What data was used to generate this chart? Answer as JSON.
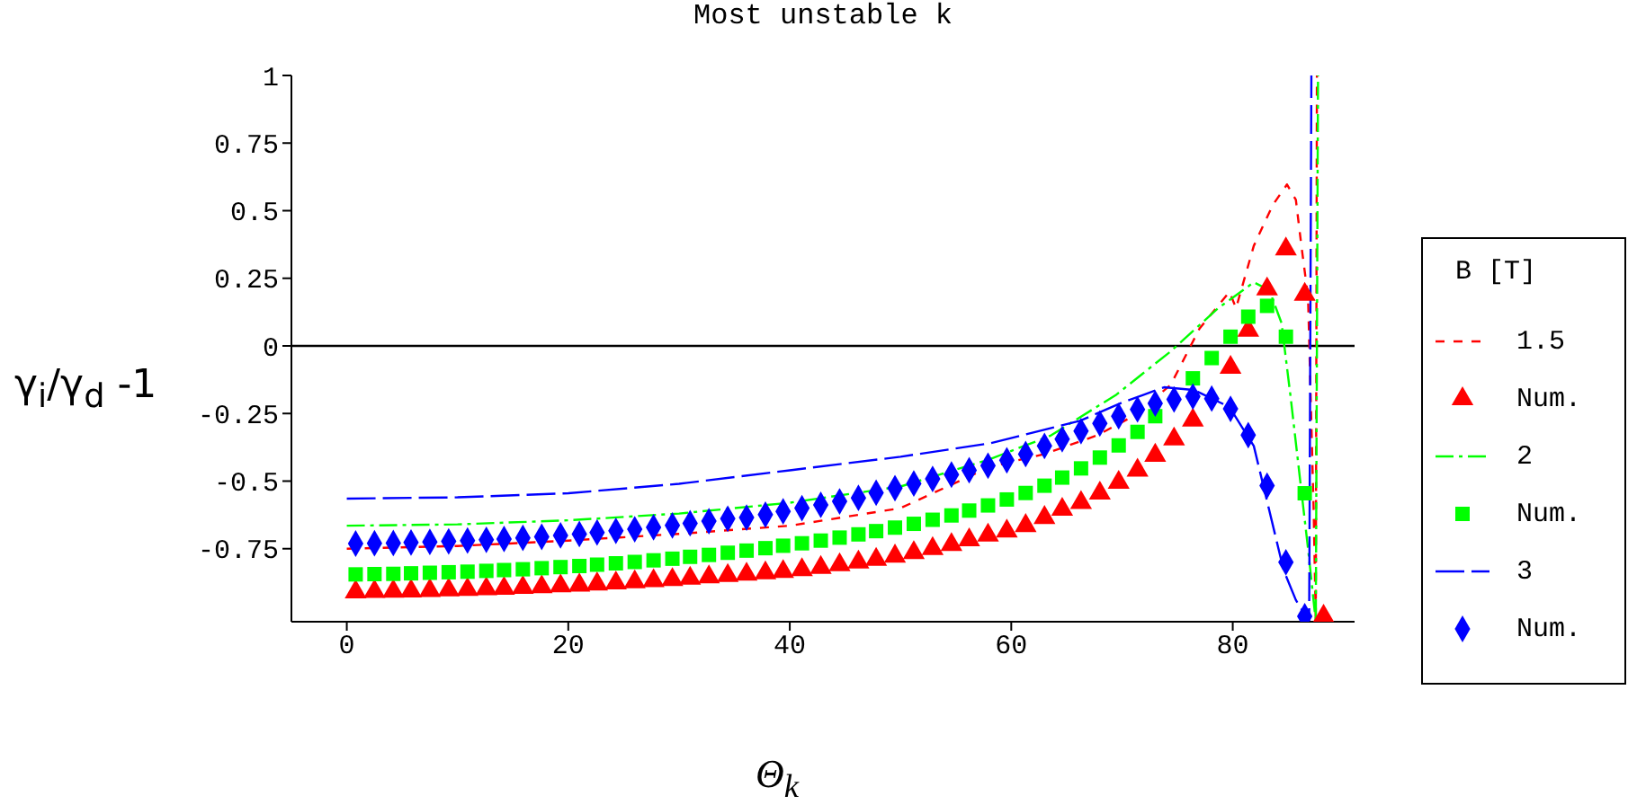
{
  "chart_data": {
    "type": "scatter",
    "title": "Most unstable  k",
    "xlabel": "Θ$_{k}$",
    "ylabel": "γ$_{i}$/γ$_{d}$ -1",
    "legend_title": "B [T]",
    "legend": "right",
    "xlim": [
      -5,
      91
    ],
    "xticks": [
      0,
      20,
      40,
      60,
      80
    ],
    "ylim": [
      -1.02,
      1
    ],
    "yticks": [
      1,
      0.75,
      0.5,
      0.25,
      0,
      -0.25,
      -0.5,
      -0.75
    ],
    "ref_lines": [
      {
        "axis": "y",
        "value": 0,
        "color": "#000000"
      }
    ],
    "x": [
      0.8,
      2.5,
      4.2,
      5.8,
      7.5,
      9.2,
      10.9,
      12.6,
      14.2,
      15.9,
      17.6,
      19.3,
      21.0,
      22.6,
      24.3,
      26.0,
      27.7,
      29.4,
      31.0,
      32.7,
      34.4,
      36.1,
      37.8,
      39.4,
      41.1,
      42.8,
      44.5,
      46.2,
      47.8,
      49.5,
      51.2,
      52.9,
      54.6,
      56.2,
      57.9,
      59.6,
      61.3,
      63.0,
      64.6,
      66.3,
      68.0,
      69.7,
      71.4,
      73.0,
      74.7,
      76.4,
      78.1,
      79.8,
      81.4,
      83.1,
      84.8,
      86.5,
      88.2
    ],
    "series": [
      {
        "name": "1.5",
        "type": "line",
        "line_style": "dashed",
        "marker": "none",
        "color": "#ff0000",
        "x": [
          0,
          10,
          20,
          30,
          40,
          50,
          58.1,
          63,
          67.8,
          71,
          74.4,
          77,
          79.7,
          80.3,
          81.9,
          83.6,
          84.9,
          85.7,
          86.2,
          86.8,
          87.3,
          87.5,
          87.6
        ],
        "values": [
          -0.75,
          -0.74,
          -0.72,
          -0.695,
          -0.665,
          -0.6,
          -0.447,
          -0.4,
          -0.33,
          -0.26,
          -0.144,
          0.064,
          0.2,
          0.14,
          0.37,
          0.52,
          0.597,
          0.54,
          0.37,
          0.18,
          -0.6,
          -1.02,
          1
        ]
      },
      {
        "name": "Num.",
        "marker": "triangle",
        "color": "#ff0000",
        "values": [
          -0.91,
          -0.909,
          -0.908,
          -0.907,
          -0.905,
          -0.903,
          -0.901,
          -0.899,
          -0.897,
          -0.894,
          -0.891,
          -0.888,
          -0.885,
          -0.881,
          -0.877,
          -0.873,
          -0.869,
          -0.865,
          -0.86,
          -0.855,
          -0.85,
          -0.845,
          -0.84,
          -0.835,
          -0.828,
          -0.82,
          -0.81,
          -0.8,
          -0.79,
          -0.778,
          -0.765,
          -0.75,
          -0.735,
          -0.718,
          -0.7,
          -0.685,
          -0.665,
          -0.635,
          -0.605,
          -0.58,
          -0.545,
          -0.505,
          -0.46,
          -0.405,
          -0.345,
          -0.275,
          null,
          -0.08,
          0.057,
          0.21,
          0.358,
          0.19,
          -1.0
        ]
      },
      {
        "name": "2",
        "type": "line",
        "line_style": "dashed",
        "marker": "none",
        "color": "#00ff00",
        "x": [
          0,
          10,
          20,
          30,
          40,
          50,
          58,
          63.5,
          69.5,
          74.4,
          78.7,
          81.9,
          83.3,
          84.4,
          85.2,
          86,
          86.8,
          87.5,
          87.7
        ],
        "values": [
          -0.665,
          -0.66,
          -0.645,
          -0.62,
          -0.58,
          -0.52,
          -0.42,
          -0.333,
          -0.18,
          -0.02,
          0.14,
          0.235,
          0.206,
          0.085,
          -0.18,
          -0.466,
          -0.75,
          -1.02,
          1
        ]
      },
      {
        "name": "Num.",
        "marker": "square",
        "color": "#00ff00",
        "values": [
          -0.845,
          -0.844,
          -0.843,
          -0.841,
          -0.839,
          -0.837,
          -0.835,
          -0.832,
          -0.829,
          -0.826,
          -0.822,
          -0.818,
          -0.814,
          -0.809,
          -0.804,
          -0.799,
          -0.793,
          -0.787,
          -0.78,
          -0.773,
          -0.765,
          -0.757,
          -0.748,
          -0.739,
          -0.73,
          -0.72,
          -0.709,
          -0.697,
          -0.685,
          -0.672,
          -0.658,
          -0.643,
          -0.627,
          -0.609,
          -0.59,
          -0.568,
          -0.544,
          -0.517,
          -0.487,
          -0.453,
          -0.413,
          -0.368,
          -0.318,
          -0.26,
          null,
          -0.12,
          -0.045,
          0.034,
          0.108,
          0.148,
          0.034,
          -0.545,
          null
        ]
      },
      {
        "name": "3",
        "type": "line",
        "line_style": "dashed",
        "marker": "none",
        "color": "#0000ff",
        "x": [
          0,
          10,
          20,
          30,
          40,
          50,
          58.1,
          66.2,
          70,
          73.8,
          76.5,
          79.7,
          81.9,
          84.6,
          85.7,
          86.9,
          87.1
        ],
        "values": [
          -0.565,
          -0.56,
          -0.545,
          -0.51,
          -0.46,
          -0.41,
          -0.36,
          -0.277,
          -0.21,
          -0.153,
          -0.163,
          -0.226,
          -0.37,
          -0.83,
          -0.94,
          -1.02,
          1
        ]
      },
      {
        "name": "Num.",
        "marker": "diamond",
        "color": "#0000ff",
        "values": [
          -0.731,
          -0.73,
          -0.729,
          -0.727,
          -0.725,
          -0.723,
          -0.72,
          -0.717,
          -0.714,
          -0.71,
          -0.706,
          -0.701,
          -0.696,
          -0.69,
          -0.684,
          -0.678,
          -0.671,
          -0.664,
          -0.656,
          -0.648,
          -0.639,
          -0.635,
          -0.624,
          -0.612,
          -0.6,
          -0.588,
          -0.575,
          -0.562,
          -0.543,
          -0.526,
          -0.509,
          -0.492,
          -0.476,
          -0.46,
          -0.443,
          -0.423,
          -0.4,
          -0.37,
          -0.345,
          -0.315,
          -0.287,
          -0.26,
          -0.235,
          -0.213,
          -0.198,
          -0.187,
          -0.195,
          -0.233,
          -0.33,
          -0.517,
          -0.8,
          -1.0,
          null
        ]
      }
    ]
  }
}
